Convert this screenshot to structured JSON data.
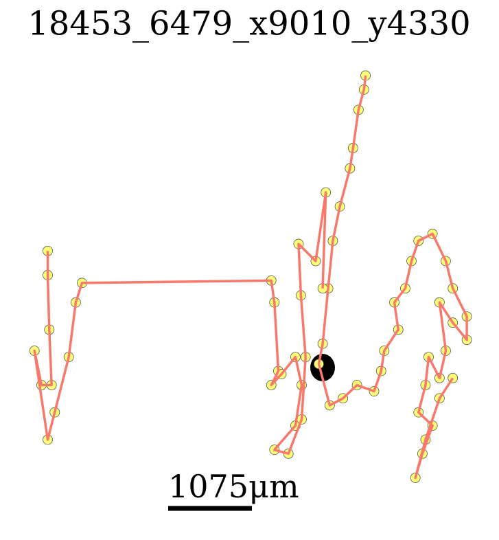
{
  "chart_data": {
    "type": "line",
    "title": "18453_6479_x9010_y4330",
    "line_color": "#f8786b",
    "marker_color": "#ffff77",
    "scale_bar": {
      "label": "1075μm",
      "length": 1075
    },
    "x": [
      4490,
      4470,
      4400,
      4330,
      4290,
      4160,
      4070,
      4010,
      3940,
      3890,
      4030,
      4200,
      4380,
      4600,
      4690,
      4730,
      4910,
      4860,
      5000,
      5080,
      5170,
      5350,
      5520,
      5610,
      5790,
      5790,
      5610,
      5440,
      5520,
      5440,
      5300,
      5260,
      5170,
      5350,
      5220,
      5130,
      5260,
      5440,
      5610,
      null,
      410,
      410,
      430,
      460,
      330,
      240,
      410,
      500,
      680,
      770,
      850,
      3280,
      3320,
      3370,
      3280,
      3410,
      3590,
      3670,
      3590,
      3320,
      3500,
      3670,
      3720,
      3660,
      3630,
      3850,
      3980,
      3940
    ],
    "y": [
      5270,
      5090,
      4830,
      4340,
      4080,
      3590,
      3150,
      2540,
      1830,
      1570,
      1040,
      1130,
      1300,
      1220,
      1480,
      1740,
      2010,
      2360,
      2540,
      2890,
      3150,
      3240,
      2890,
      2540,
      2180,
      1880,
      2100,
      2360,
      1740,
      1390,
      1660,
      1300,
      950,
      780,
      420,
      110,
      600,
      1130,
      1390,
      null,
      3020,
      2710,
      2010,
      1300,
      1300,
      1740,
      600,
      950,
      1660,
      2360,
      2610,
      2640,
      2360,
      1480,
      1300,
      1440,
      1660,
      1300,
      780,
      470,
      420,
      860,
      1660,
      2450,
      3110,
      2890,
      3770,
      2540
    ]
  }
}
